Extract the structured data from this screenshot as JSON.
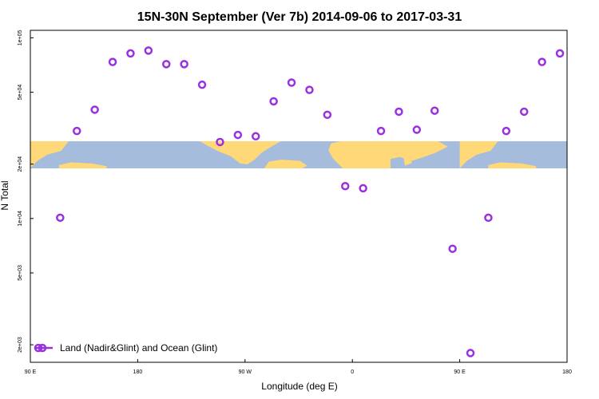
{
  "chart_data": {
    "type": "scatter",
    "title": "15N-30N September (Ver 7b)   2014-09-06 to 2017-03-31",
    "xlabel": "Longitude (deg E)",
    "ylabel": "N Total",
    "x_ticks": [
      {
        "value": 90,
        "label": "90 E"
      },
      {
        "value": 180,
        "label": "180"
      },
      {
        "value": 270,
        "label": "90 W"
      },
      {
        "value": 360,
        "label": "0"
      },
      {
        "value": 450,
        "label": "90 E"
      },
      {
        "value": 540,
        "label": "180"
      }
    ],
    "xlim": [
      90,
      540
    ],
    "y_scale": "log",
    "ylim": [
      1600,
      110000
    ],
    "y_ticks": [
      {
        "value": 2000,
        "label": "2e+03"
      },
      {
        "value": 5000,
        "label": "5e+03"
      },
      {
        "value": 10000,
        "label": "1e+04"
      },
      {
        "value": 20000,
        "label": "2e+04"
      },
      {
        "value": 50000,
        "label": "5e+04"
      },
      {
        "value": 100000,
        "label": "1e+05"
      }
    ],
    "series": [
      {
        "name": "Land (Nadir&Glint) and Ocean (Glint)",
        "color": "#9b30e0",
        "marker": "open-circle",
        "points": [
          [
            115,
            10100
          ],
          [
            129,
            30500
          ],
          [
            144,
            40000
          ],
          [
            159,
            73500
          ],
          [
            174,
            82000
          ],
          [
            189,
            85000
          ],
          [
            204,
            71500
          ],
          [
            219,
            71500
          ],
          [
            234,
            55000
          ],
          [
            249,
            26500
          ],
          [
            264,
            29000
          ],
          [
            279,
            28500
          ],
          [
            294,
            44500
          ],
          [
            309,
            56500
          ],
          [
            324,
            51500
          ],
          [
            339,
            37500
          ],
          [
            354,
            15100
          ],
          [
            369,
            14700
          ],
          [
            384,
            30500
          ],
          [
            399,
            39000
          ],
          [
            414,
            31000
          ],
          [
            429,
            39500
          ],
          [
            444,
            6800
          ],
          [
            459,
            1800
          ],
          [
            474,
            10100
          ],
          [
            489,
            30500
          ],
          [
            504,
            39000
          ],
          [
            519,
            73500
          ],
          [
            534,
            82000
          ]
        ]
      }
    ],
    "legend": {
      "position": "bottom-left"
    },
    "background_map": {
      "type": "world-map-strip",
      "land_color": "#ffd878",
      "ocean_color": "#a6bcdc"
    }
  }
}
